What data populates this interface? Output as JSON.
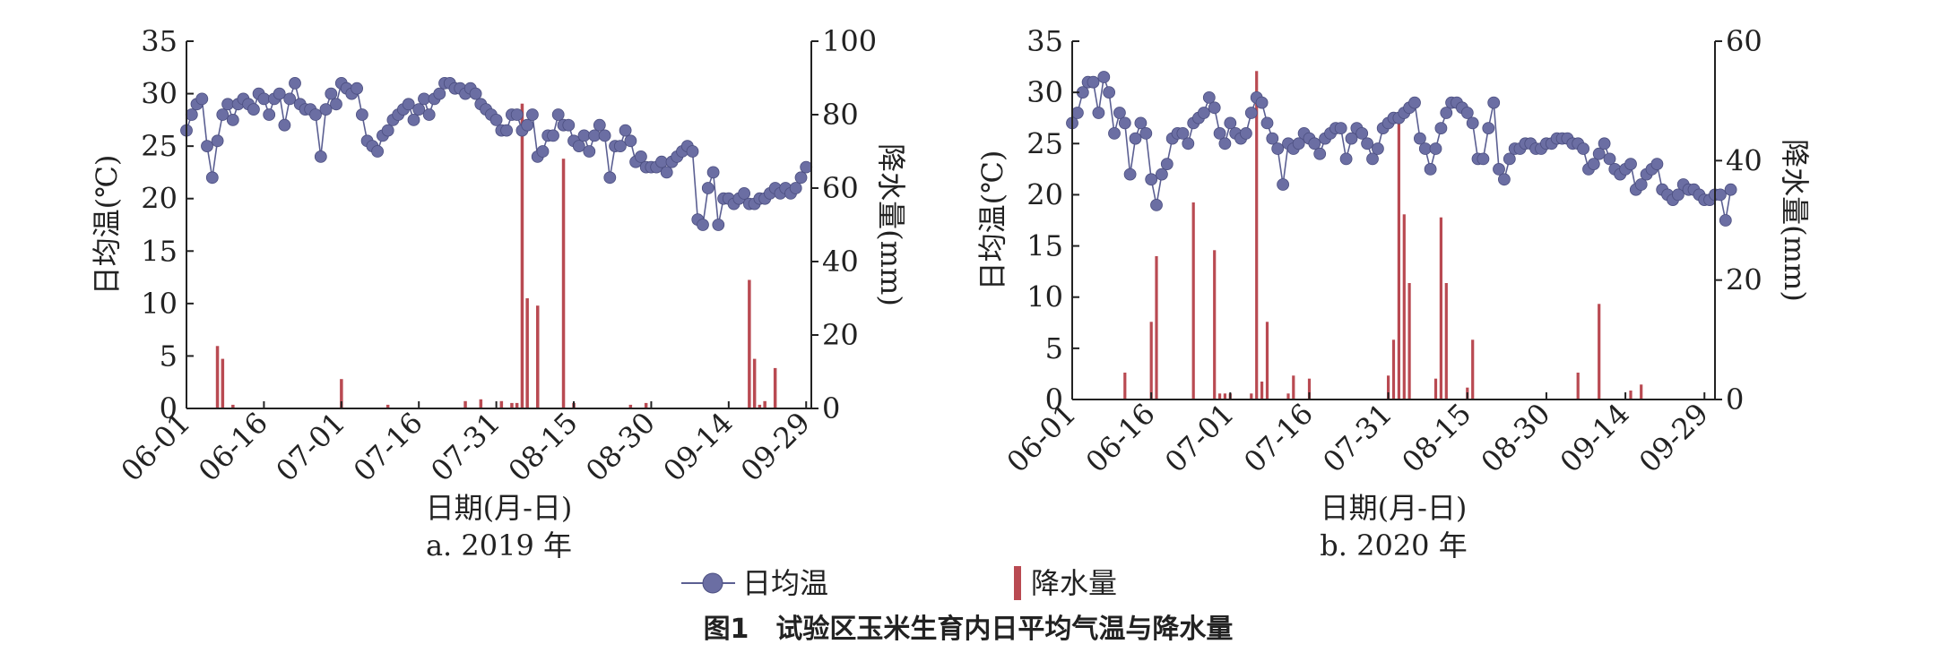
{
  "legend": {
    "temp_label": "日均温",
    "rain_label": "降水量"
  },
  "figure_title": "图1　试验区玉米生育内日平均气温与降水量",
  "colors": {
    "temp_line": "#5b5f92",
    "temp_marker": "#6b6ea3",
    "rain_bar": "#b94a52",
    "axis": "#222222"
  },
  "chart_data": [
    {
      "type": "line+bar",
      "panel_label": "a. 2019 年",
      "xlabel": "日期(月-日)",
      "ylabel_left": "日均温(℃)",
      "ylabel_right": "降水量(mm)",
      "ylim_left": [
        0,
        35
      ],
      "ylim_right": [
        0,
        100
      ],
      "yticks_left": [
        "0",
        "5",
        "10",
        "15",
        "20",
        "25",
        "30",
        "35"
      ],
      "yticks_right": [
        "0",
        "20",
        "40",
        "60",
        "80",
        "100"
      ],
      "x_start": "06-01",
      "xticks": [
        {
          "day": 0,
          "label": "06-01"
        },
        {
          "day": 15,
          "label": "06-16"
        },
        {
          "day": 30,
          "label": "07-01"
        },
        {
          "day": 45,
          "label": "07-16"
        },
        {
          "day": 60,
          "label": "07-31"
        },
        {
          "day": 75,
          "label": "08-15"
        },
        {
          "day": 90,
          "label": "08-30"
        },
        {
          "day": 105,
          "label": "09-14"
        },
        {
          "day": 120,
          "label": "09-29"
        }
      ],
      "series": [
        {
          "name": "日均温",
          "kind": "line",
          "axis": "left",
          "values": [
            26.5,
            28,
            29,
            29.5,
            25,
            22,
            25.5,
            28,
            29,
            27.5,
            29,
            29.5,
            29,
            28.5,
            30,
            29.5,
            28,
            29.5,
            30,
            27,
            29.5,
            31,
            29,
            28.5,
            28.5,
            28,
            24,
            28.5,
            30,
            29,
            31,
            30.5,
            30,
            30.5,
            28,
            25.5,
            25,
            24.5,
            26,
            26.5,
            27.5,
            28,
            28.5,
            29,
            27.5,
            28.5,
            29.5,
            28,
            29.5,
            30,
            31,
            31,
            30.5,
            30.5,
            30,
            30.5,
            30,
            29,
            28.5,
            28,
            27.5,
            26.5,
            26.5,
            28,
            28,
            26.5,
            27,
            28,
            24,
            24.5,
            26,
            26,
            28,
            27,
            27,
            25.5,
            25,
            26,
            24.5,
            26,
            27,
            26,
            22,
            25,
            25,
            26.5,
            25.5,
            23.5,
            24,
            23,
            23,
            23,
            23.5,
            22.5,
            23.5,
            24,
            24.5,
            25,
            24.5,
            18,
            17.5,
            21,
            22.5,
            17.5,
            20,
            20,
            19.5,
            20,
            20.5,
            19.5,
            19.5,
            20,
            20,
            20.5,
            21,
            20.5,
            21,
            20.5,
            21,
            22,
            23
          ]
        },
        {
          "name": "降水量",
          "kind": "bar",
          "axis": "right",
          "points": [
            {
              "day": 6,
              "value": 17
            },
            {
              "day": 7,
              "value": 13.5
            },
            {
              "day": 9,
              "value": 1
            },
            {
              "day": 30,
              "value": 8
            },
            {
              "day": 39,
              "value": 1
            },
            {
              "day": 54,
              "value": 2
            },
            {
              "day": 57,
              "value": 2.5
            },
            {
              "day": 61,
              "value": 2
            },
            {
              "day": 63,
              "value": 1.5
            },
            {
              "day": 64,
              "value": 1.5
            },
            {
              "day": 65,
              "value": 83
            },
            {
              "day": 66,
              "value": 30
            },
            {
              "day": 68,
              "value": 28
            },
            {
              "day": 73,
              "value": 68
            },
            {
              "day": 75,
              "value": 1.5
            },
            {
              "day": 86,
              "value": 1
            },
            {
              "day": 89,
              "value": 1.5
            },
            {
              "day": 109,
              "value": 35
            },
            {
              "day": 110,
              "value": 13.5
            },
            {
              "day": 111,
              "value": 1
            },
            {
              "day": 112,
              "value": 2
            },
            {
              "day": 114,
              "value": 11
            }
          ]
        }
      ]
    },
    {
      "type": "line+bar",
      "panel_label": "b. 2020 年",
      "xlabel": "日期(月-日)",
      "ylabel_left": "日均温(℃)",
      "ylabel_right": "降水量(mm)",
      "ylim_left": [
        0,
        35
      ],
      "ylim_right": [
        0,
        60
      ],
      "yticks_left": [
        "0",
        "5",
        "10",
        "15",
        "20",
        "25",
        "30",
        "35"
      ],
      "yticks_right": [
        "0",
        "20",
        "40",
        "60"
      ],
      "x_start": "06-01",
      "xticks": [
        {
          "day": 0,
          "label": "06-01"
        },
        {
          "day": 15,
          "label": "06-16"
        },
        {
          "day": 30,
          "label": "07-01"
        },
        {
          "day": 45,
          "label": "07-16"
        },
        {
          "day": 60,
          "label": "07-31"
        },
        {
          "day": 75,
          "label": "08-15"
        },
        {
          "day": 90,
          "label": "08-30"
        },
        {
          "day": 105,
          "label": "09-14"
        },
        {
          "day": 120,
          "label": "09-29"
        }
      ],
      "series": [
        {
          "name": "日均温",
          "kind": "line",
          "axis": "left",
          "values": [
            27,
            28,
            30,
            31,
            31,
            28,
            31.5,
            30,
            26,
            28,
            27,
            22,
            25.5,
            27,
            26,
            21.5,
            19,
            22,
            23,
            25.5,
            26,
            26,
            25,
            27,
            27.5,
            28,
            29.5,
            28.5,
            26,
            25,
            27,
            26,
            25.5,
            26,
            28,
            29.5,
            29,
            27,
            25.5,
            24.5,
            21,
            25,
            24.5,
            25,
            26,
            25.5,
            25,
            24,
            25.5,
            26,
            26.5,
            26.5,
            23.5,
            25.5,
            26.5,
            26,
            25,
            23.5,
            24.5,
            26.5,
            27,
            27.5,
            27.5,
            28,
            28.5,
            29,
            25.5,
            24.5,
            22.5,
            24.5,
            26.5,
            28,
            29,
            29,
            28.5,
            28,
            27,
            23.5,
            23.5,
            26.5,
            29,
            22.5,
            21.5,
            23.5,
            24.5,
            24.5,
            25,
            25,
            24.5,
            24.5,
            25,
            25,
            25.5,
            25.5,
            25.5,
            25,
            25,
            24.5,
            22.5,
            23,
            24,
            25,
            23.5,
            22.5,
            22,
            22.5,
            23,
            20.5,
            21,
            22,
            22.5,
            23,
            20.5,
            20,
            19.5,
            20,
            21,
            20.5,
            20.5,
            20,
            19.5,
            19.5,
            20,
            20,
            17.5,
            20.5
          ]
        },
        {
          "name": "降水量",
          "kind": "bar",
          "axis": "right",
          "points": [
            {
              "day": 10,
              "value": 4.5
            },
            {
              "day": 15,
              "value": 13
            },
            {
              "day": 16,
              "value": 24
            },
            {
              "day": 23,
              "value": 33
            },
            {
              "day": 27,
              "value": 25
            },
            {
              "day": 28,
              "value": 1
            },
            {
              "day": 29,
              "value": 1
            },
            {
              "day": 30,
              "value": 1
            },
            {
              "day": 34,
              "value": 1
            },
            {
              "day": 35,
              "value": 55
            },
            {
              "day": 36,
              "value": 3
            },
            {
              "day": 37,
              "value": 13
            },
            {
              "day": 41,
              "value": 1
            },
            {
              "day": 42,
              "value": 4
            },
            {
              "day": 45,
              "value": 3.5
            },
            {
              "day": 60,
              "value": 4
            },
            {
              "day": 61,
              "value": 10
            },
            {
              "day": 62,
              "value": 47
            },
            {
              "day": 63,
              "value": 31
            },
            {
              "day": 64,
              "value": 19.5
            },
            {
              "day": 69,
              "value": 3.5
            },
            {
              "day": 70,
              "value": 30.5
            },
            {
              "day": 71,
              "value": 19.5
            },
            {
              "day": 75,
              "value": 2
            },
            {
              "day": 76,
              "value": 10
            },
            {
              "day": 96,
              "value": 4.5
            },
            {
              "day": 100,
              "value": 16
            },
            {
              "day": 106,
              "value": 1.5
            },
            {
              "day": 108,
              "value": 2.5
            }
          ]
        }
      ]
    }
  ]
}
